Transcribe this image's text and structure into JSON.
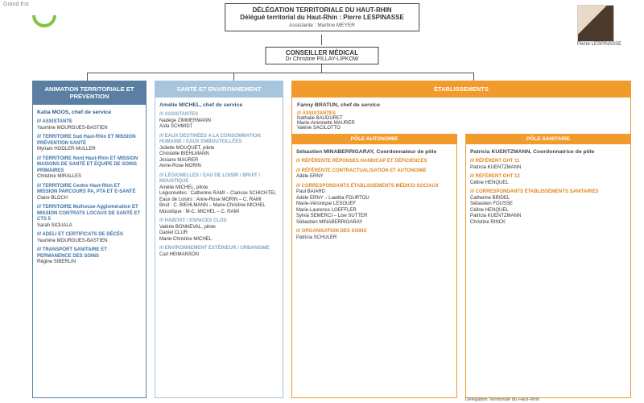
{
  "region_label": "Grand Est",
  "header": {
    "title1": "DÉLÉGATION TERRITORIALE DU HAUT-RHIN",
    "title2": "Délégué territorial du Haut-Rhin : Pierre LESPINASSE",
    "assistant": "Assistante : Martine MEYER",
    "photo_caption": "Pierre LESPINASSE"
  },
  "conseiller": {
    "title": "CONSEILLER MÉDICAL",
    "name": "Dr Christine PILLAY-LIPKOW"
  },
  "animation": {
    "header": "ANIMATION TERRITORIALE ET PRÉVENTION",
    "chef": "Katia MOOS, chef de service",
    "sections": [
      {
        "t": "/// ASSISTANTE",
        "n": "Yasmine MOURGUES-BASTIEN"
      },
      {
        "t": "/// TERRITOIRE Sud Haut-Rhin ET MISSION PRÉVENTION SANTÉ",
        "n": "Myriam HODLER-MULLER"
      },
      {
        "t": "/// TERRITOIRE Nord Haut-Rhin ET MISSION MAISONS DE SANTÉ ET ÉQUIPE DE SOINS PRIMAIRES",
        "n": "Christine MIRALLES"
      },
      {
        "t": "/// TERRITOIRE Centre Haut-Rhin ET MISSION PARCOURS PA, PTA ET E-SANTÉ",
        "n": "Claire BLOCH"
      },
      {
        "t": "/// TERRITOIRE Mulhouse Agglomération ET MISSION CONTRATS LOCAUX DE SANTÉ ET CTS 5",
        "n": "Sarah SIOUALA"
      },
      {
        "t": "/// ADELI ET CERTIFICATS DE DÉCÈS",
        "n": "Yasmine MOURGUES-BASTIEN"
      },
      {
        "t": "/// TRANSPORT SANITAIRE ET PERMANENCE DES SOINS",
        "n": "Régine SIBERLIN"
      }
    ]
  },
  "sante": {
    "header": "SANTÉ ET ENVIRONNEMENT",
    "chef": "Amélie MICHEL, chef de service",
    "sections": [
      {
        "t": "/// ASSISTANTES",
        "n": "Nadège ZIMMERMANN\nAïda SCHMIDT"
      },
      {
        "t": "/// EAUX DESTINÉES A LA CONSOMMATION HUMAINE / EAUX EMBOUTEILLÉES",
        "n": "Juliette MOUQUET, pilote\nChristelle BIEHLMANN\nJosiane MAURER\nAnne-Rose MORIN"
      },
      {
        "t": "/// LÉGIONELLES / EAU DE LOISIR / BRUIT / MOUSTIQUE",
        "n": "Amélie MICHEL, pilote\nLégionnelles : Catherine RAMI – Clarisse SCHICHTEL\nEaux de Loisirs : Anne-Rose MORIN – C. RAMI\nBruit : C. BIEHLMANN – Marie-Christine MICHEL\nMoustique : M-C. MICHEL – C. RAMI"
      },
      {
        "t": "/// HABITAT / ESPACES CLOS",
        "n": "Valérie BONNEVAL, pilote\nDaniel CLUR\nMarie-Christine MICHEL"
      },
      {
        "t": "/// ENVIRONNEMENT EXTÉRIEUR / URBANISME",
        "n": "Carl HEIMANSON"
      }
    ]
  },
  "etab": {
    "header": "ÉTABLISSEMENTS",
    "chef": "Fanny BRATUN, chef de service",
    "assist_t": "/// ASSISTANTES",
    "assist_n": "Nathalie BAUDURET\nMarie-Antoinette MAURER\nValérie SACILOTTO",
    "pole_autonomie": {
      "header": "PÔLE AUTONOMIE",
      "coord": "Sébastien MINABERRIGARAY, Coordonnateur de pôle",
      "sections": [
        {
          "t": "/// RÉFÉRENTE RÉPONSES HANDICAP ET DÉFICIENCES",
          "n": ""
        },
        {
          "t": "/// RÉFÉRENTE CONTRACTUALISATION ET AUTONOMIE",
          "n": "Adèle ERNY"
        },
        {
          "t": "/// CORRESPONDANTS ÉTABLISSEMENTS MÉDICO-SOCIAUX",
          "n": "Paul BAIARD\nAdèle ERNY – Laetitia FOURTOU\nMarie-Véronique LESOUEF\nMarie-Laurence LOEFFLER\nSylvia SEMERCI – Lise SUTTER\nSébastien MINABERRIGARAY"
        },
        {
          "t": "/// ORGANISATION DES SOINS",
          "n": "Patricia SCHULER"
        }
      ]
    },
    "pole_sanitaire": {
      "header": "PÔLE SANITAIRE",
      "coord": "Patricia KUENTZMANN, Coordonnatrice de pôle",
      "sections": [
        {
          "t": "/// RÉFÉRENT GHT 11",
          "n": "Patricia KUENTZMANN"
        },
        {
          "t": "/// RÉFÉRENT GHT 12",
          "n": "Céline HENQUEL"
        },
        {
          "t": "/// CORRESPONDANTS ÉTABLISSEMENTS SANITAIRES",
          "n": "Catherine BRIDEL\nSébastien FOUSSE\nCéline HENQUEL\nPatricia KUENTZMANN\nChristine RINCK"
        }
      ]
    }
  },
  "footer_note": "Délégation Territoriale du Haut-Rhin"
}
